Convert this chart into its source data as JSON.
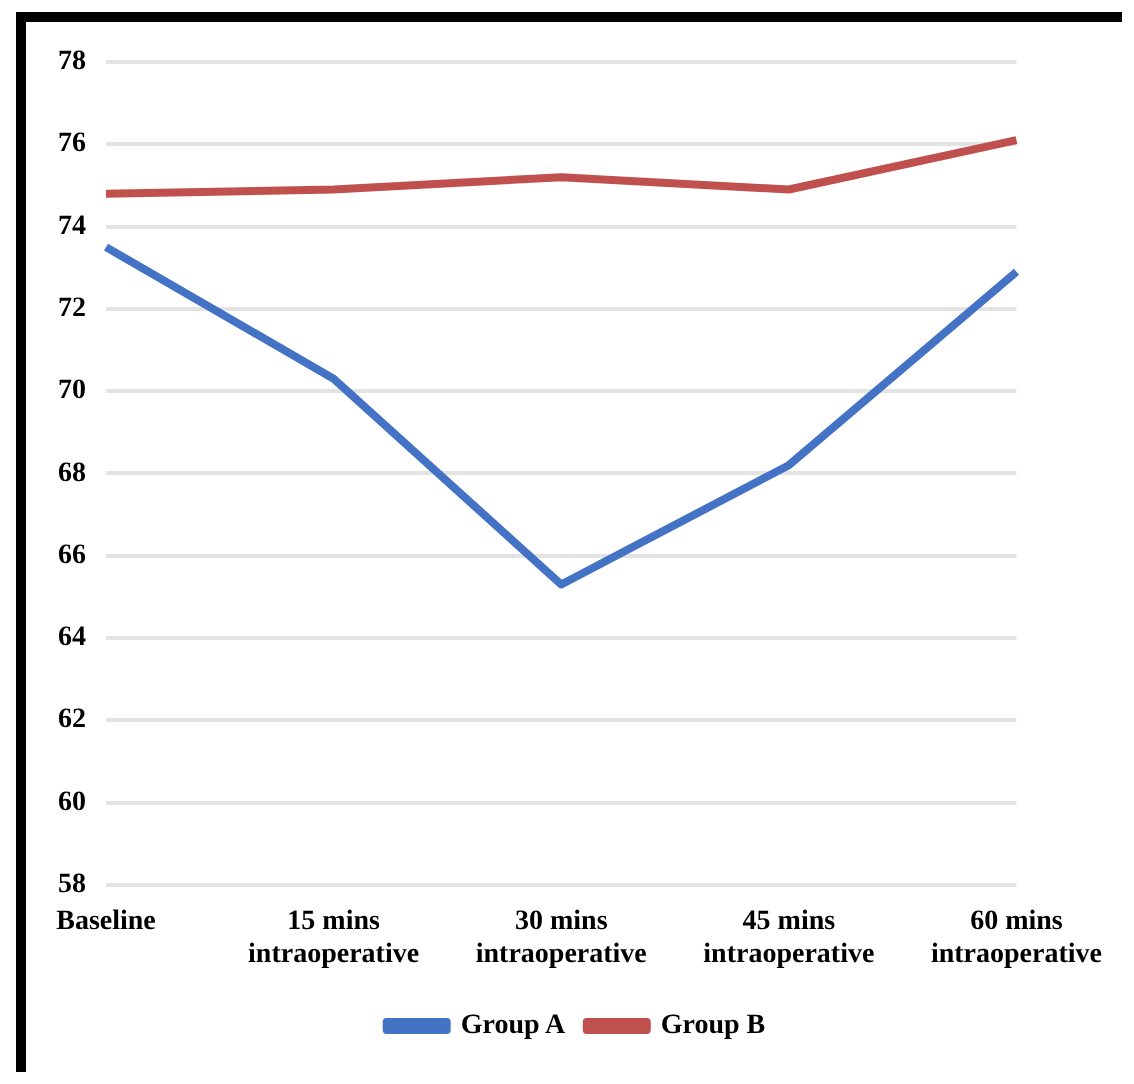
{
  "chart_data": {
    "type": "line",
    "categories": [
      "Baseline",
      "15 mins intraoperative",
      "30 mins intraoperative",
      "45 mins intraoperative",
      "60 mins intraoperative"
    ],
    "series": [
      {
        "name": "Group A",
        "color": "#4472c4",
        "values": [
          73.5,
          70.3,
          65.3,
          68.2,
          72.9
        ]
      },
      {
        "name": "Group B",
        "color": "#c0504d",
        "values": [
          74.8,
          74.9,
          75.2,
          74.9,
          76.1
        ]
      }
    ],
    "ylim": [
      58,
      78
    ],
    "yticks": [
      58,
      60,
      62,
      64,
      66,
      68,
      70,
      72,
      74,
      76,
      78
    ],
    "grid": "y",
    "legend": "bottom",
    "marker": "none",
    "line_style": "solid"
  }
}
